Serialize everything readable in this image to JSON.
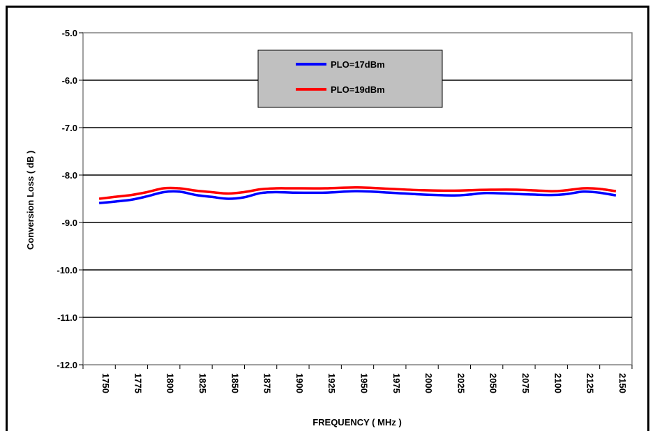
{
  "chart_data": {
    "type": "line",
    "title": "",
    "xlabel": "FREQUENCY ( MHz )",
    "ylabel": "Conversion Loss ( dB )",
    "ylim": [
      -12.0,
      -5.0
    ],
    "xlim": [
      1750,
      2150
    ],
    "grid": {
      "horizontal": true,
      "vertical": false
    },
    "legend_position": "top-center",
    "x_ticks": [
      "1750",
      "1775",
      "1800",
      "1825",
      "1850",
      "1875",
      "1900",
      "1925",
      "1950",
      "1975",
      "2000",
      "2025",
      "2050",
      "2075",
      "2100",
      "2125",
      "2150"
    ],
    "y_ticks": [
      "-5.0",
      "-6.0",
      "-7.0",
      "-8.0",
      "-9.0",
      "-10.0",
      "-11.0",
      "-12.0"
    ],
    "series": [
      {
        "name": "PLO=17dBm",
        "color": "#0000ff",
        "points": [
          [
            1750,
            -8.59
          ],
          [
            1762,
            -8.56
          ],
          [
            1775,
            -8.52
          ],
          [
            1787,
            -8.45
          ],
          [
            1800,
            -8.36
          ],
          [
            1812,
            -8.35
          ],
          [
            1825,
            -8.42
          ],
          [
            1837,
            -8.46
          ],
          [
            1850,
            -8.5
          ],
          [
            1862,
            -8.47
          ],
          [
            1875,
            -8.38
          ],
          [
            1887,
            -8.36
          ],
          [
            1900,
            -8.37
          ],
          [
            1925,
            -8.37
          ],
          [
            1950,
            -8.34
          ],
          [
            1975,
            -8.37
          ],
          [
            2000,
            -8.41
          ],
          [
            2025,
            -8.43
          ],
          [
            2037,
            -8.41
          ],
          [
            2050,
            -8.38
          ],
          [
            2075,
            -8.4
          ],
          [
            2100,
            -8.42
          ],
          [
            2112,
            -8.4
          ],
          [
            2125,
            -8.35
          ],
          [
            2137,
            -8.37
          ],
          [
            2150,
            -8.43
          ]
        ]
      },
      {
        "name": "PLO=19dBm",
        "color": "#ff0000",
        "points": [
          [
            1750,
            -8.5
          ],
          [
            1762,
            -8.46
          ],
          [
            1775,
            -8.42
          ],
          [
            1787,
            -8.36
          ],
          [
            1800,
            -8.28
          ],
          [
            1812,
            -8.28
          ],
          [
            1825,
            -8.33
          ],
          [
            1837,
            -8.36
          ],
          [
            1850,
            -8.39
          ],
          [
            1862,
            -8.36
          ],
          [
            1875,
            -8.3
          ],
          [
            1887,
            -8.28
          ],
          [
            1900,
            -8.28
          ],
          [
            1925,
            -8.28
          ],
          [
            1950,
            -8.26
          ],
          [
            1975,
            -8.29
          ],
          [
            2000,
            -8.32
          ],
          [
            2025,
            -8.33
          ],
          [
            2037,
            -8.32
          ],
          [
            2050,
            -8.31
          ],
          [
            2075,
            -8.31
          ],
          [
            2100,
            -8.34
          ],
          [
            2112,
            -8.32
          ],
          [
            2125,
            -8.28
          ],
          [
            2137,
            -8.29
          ],
          [
            2150,
            -8.34
          ]
        ]
      }
    ]
  },
  "colors": {
    "plot_border": "#808080",
    "legend_bg": "#c0c0c0",
    "frame": "#000000"
  }
}
